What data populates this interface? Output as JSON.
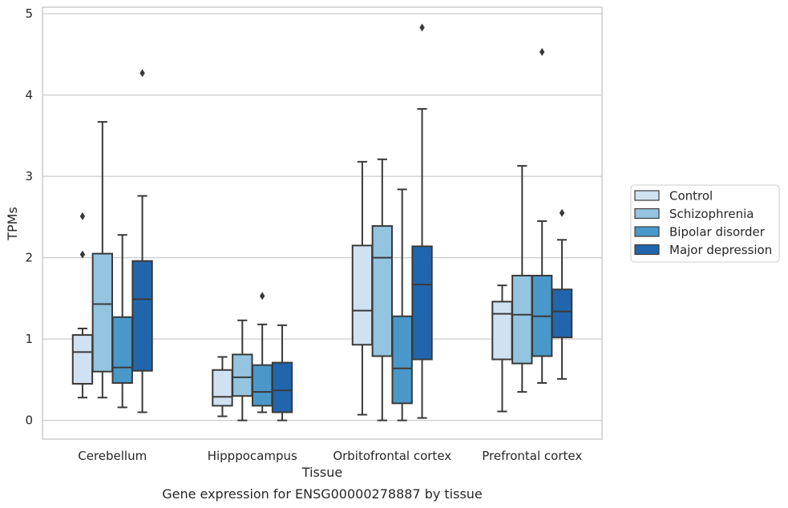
{
  "chart_data": {
    "type": "box",
    "xlabel": "Tissue",
    "ylabel": "TPMs",
    "caption": "Gene expression for ENSG00000278887 by tissue",
    "ylim": [
      -0.23,
      5.08
    ],
    "yticks": [
      0,
      1,
      2,
      3,
      4,
      5
    ],
    "grid": true,
    "legend_position": "right",
    "categories": [
      "Cerebellum",
      "Hipppocampus",
      "Orbitofrontal cortex",
      "Prefrontal cortex"
    ],
    "series": [
      {
        "name": "Control",
        "color": "#d0e1f2",
        "boxes": [
          {
            "whislo": 0.28,
            "q1": 0.45,
            "med": 0.84,
            "q3": 1.05,
            "whishi": 1.13,
            "fliers": [
              2.51,
              2.04
            ]
          },
          {
            "whislo": 0.05,
            "q1": 0.18,
            "med": 0.29,
            "q3": 0.62,
            "whishi": 0.78,
            "fliers": []
          },
          {
            "whislo": 0.07,
            "q1": 0.93,
            "med": 1.35,
            "q3": 2.15,
            "whishi": 3.18,
            "fliers": []
          },
          {
            "whislo": 0.11,
            "q1": 0.75,
            "med": 1.31,
            "q3": 1.46,
            "whishi": 1.66,
            "fliers": []
          }
        ]
      },
      {
        "name": "Schizophrenia",
        "color": "#94c4df",
        "boxes": [
          {
            "whislo": 0.28,
            "q1": 0.6,
            "med": 1.43,
            "q3": 2.05,
            "whishi": 3.67,
            "fliers": []
          },
          {
            "whislo": 0.0,
            "q1": 0.3,
            "med": 0.53,
            "q3": 0.81,
            "whishi": 1.23,
            "fliers": []
          },
          {
            "whislo": 0.0,
            "q1": 0.79,
            "med": 2.0,
            "q3": 2.39,
            "whishi": 3.21,
            "fliers": []
          },
          {
            "whislo": 0.35,
            "q1": 0.7,
            "med": 1.3,
            "q3": 1.78,
            "whishi": 3.13,
            "fliers": []
          }
        ]
      },
      {
        "name": "Bipolar disorder",
        "color": "#4a98c9",
        "boxes": [
          {
            "whislo": 0.16,
            "q1": 0.46,
            "med": 0.65,
            "q3": 1.27,
            "whishi": 2.28,
            "fliers": []
          },
          {
            "whislo": 0.1,
            "q1": 0.18,
            "med": 0.35,
            "q3": 0.68,
            "whishi": 1.18,
            "fliers": [
              1.53
            ]
          },
          {
            "whislo": 0.0,
            "q1": 0.21,
            "med": 0.64,
            "q3": 1.28,
            "whishi": 2.84,
            "fliers": []
          },
          {
            "whislo": 0.46,
            "q1": 0.79,
            "med": 1.28,
            "q3": 1.78,
            "whishi": 2.45,
            "fliers": [
              4.53
            ]
          }
        ]
      },
      {
        "name": "Major depression",
        "color": "#2166ac",
        "boxes": [
          {
            "whislo": 0.1,
            "q1": 0.61,
            "med": 1.49,
            "q3": 1.96,
            "whishi": 2.76,
            "fliers": [
              4.27
            ]
          },
          {
            "whislo": 0.0,
            "q1": 0.1,
            "med": 0.37,
            "q3": 0.71,
            "whishi": 1.17,
            "fliers": []
          },
          {
            "whislo": 0.03,
            "q1": 0.75,
            "med": 1.67,
            "q3": 2.14,
            "whishi": 3.83,
            "fliers": [
              4.83
            ]
          },
          {
            "whislo": 0.51,
            "q1": 1.02,
            "med": 1.34,
            "q3": 1.61,
            "whishi": 2.22,
            "fliers": [
              2.55
            ]
          }
        ]
      }
    ]
  }
}
